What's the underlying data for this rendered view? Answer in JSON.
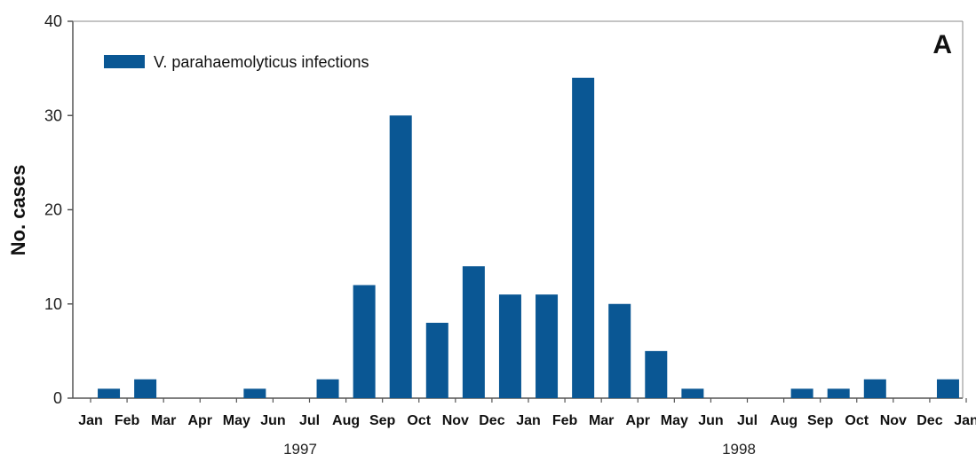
{
  "chart_data": {
    "type": "bar",
    "panel_label": "A",
    "ylabel": "No. cases",
    "ylim": [
      0,
      40
    ],
    "yticks": [
      0,
      10,
      20,
      30,
      40
    ],
    "x_tick_labels": [
      "Jan",
      "Feb",
      "Mar",
      "Apr",
      "May",
      "Jun",
      "Jul",
      "Aug",
      "Sep",
      "Oct",
      "Nov",
      "Dec",
      "Jan",
      "Feb",
      "Mar",
      "Apr",
      "May",
      "Jun",
      "Jul",
      "Aug",
      "Sep",
      "Oct",
      "Nov",
      "Dec",
      "Jan"
    ],
    "year_labels": [
      "1997",
      "1998"
    ],
    "legend": {
      "position": "top-left"
    },
    "series": [
      {
        "name": "V. parahaemolyticus infections",
        "color": "#0a5794",
        "categories": [
          "Jan 1997",
          "Feb 1997",
          "Mar 1997",
          "Apr 1997",
          "May 1997",
          "Jun 1997",
          "Jul 1997",
          "Aug 1997",
          "Sep 1997",
          "Oct 1997",
          "Nov 1997",
          "Dec 1997",
          "Jan 1998",
          "Feb 1998",
          "Mar 1998",
          "Apr 1998",
          "May 1998",
          "Jun 1998",
          "Jul 1998",
          "Aug 1998",
          "Sep 1998",
          "Oct 1998",
          "Nov 1998",
          "Dec 1998"
        ],
        "values": [
          1,
          2,
          0,
          0,
          1,
          0,
          2,
          12,
          30,
          8,
          14,
          11,
          11,
          34,
          10,
          5,
          1,
          0,
          0,
          1,
          1,
          2,
          0,
          2
        ]
      }
    ]
  }
}
